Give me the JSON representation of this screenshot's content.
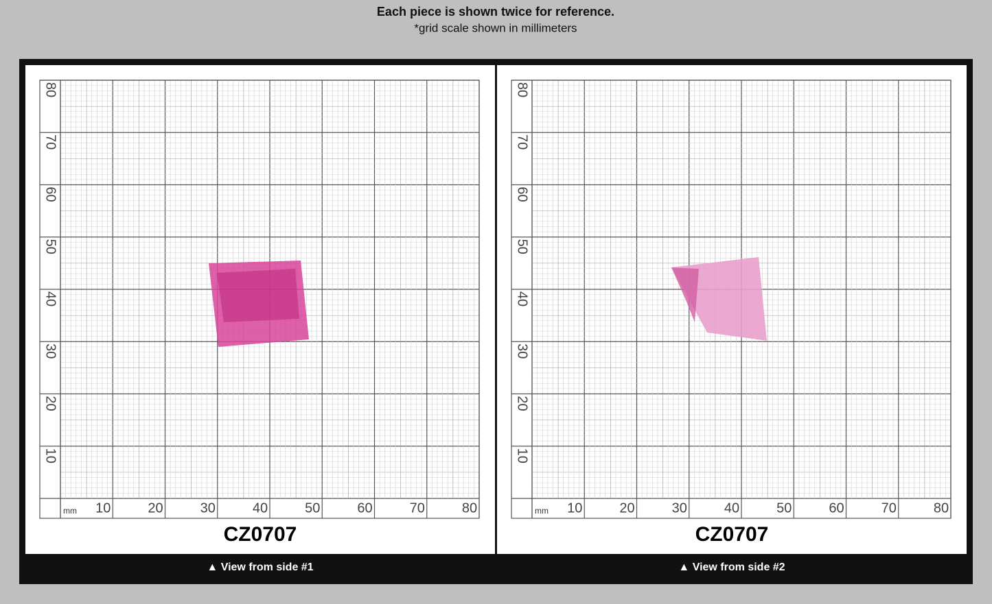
{
  "header": {
    "title": "Each piece is shown twice for reference.",
    "subtitle": "*grid scale shown in millimeters"
  },
  "grid": {
    "unit": "mm",
    "tick_labels": [
      "10",
      "20",
      "30",
      "40",
      "50",
      "60",
      "70",
      "80"
    ]
  },
  "panels": [
    {
      "sample": "CZ0707",
      "caption": "▲ View from side #1"
    },
    {
      "sample": "CZ0707",
      "caption": "▲ View from side #2"
    }
  ]
}
